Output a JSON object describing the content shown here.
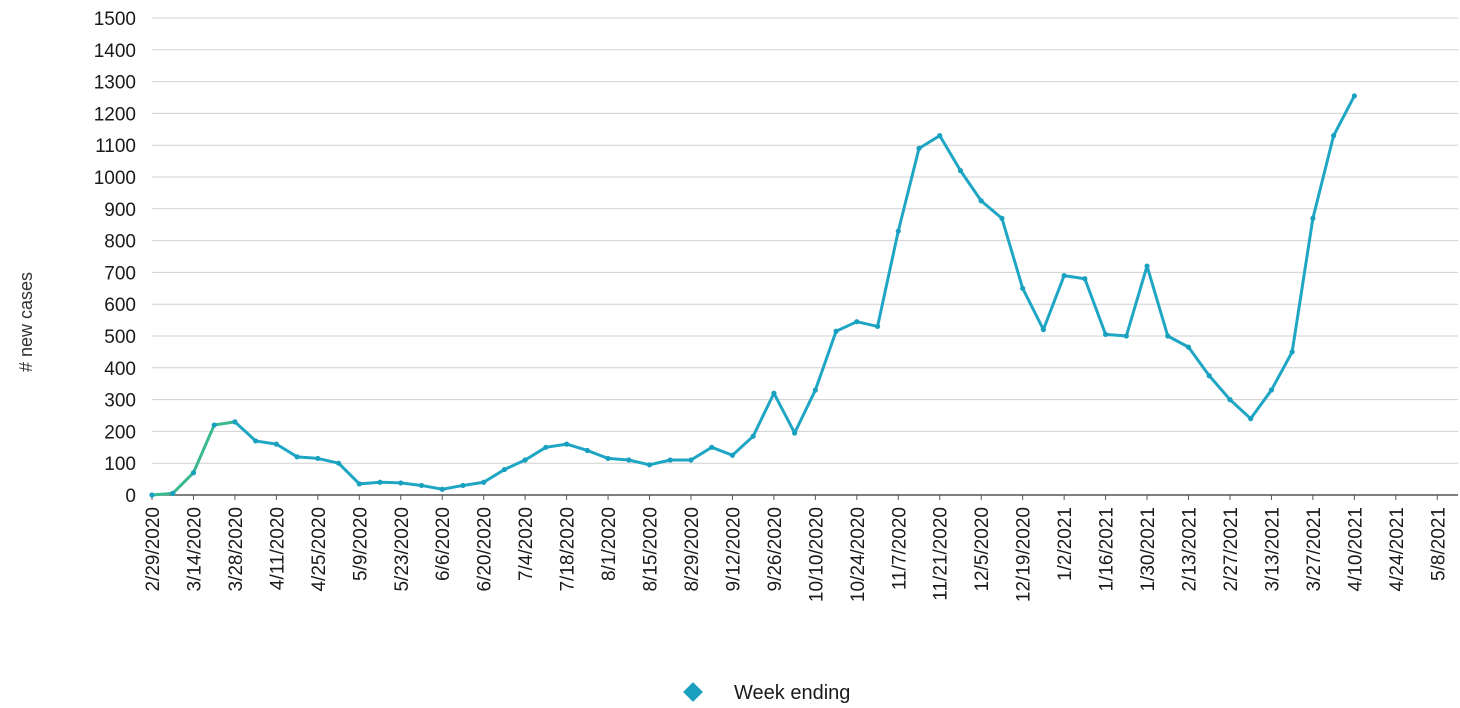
{
  "chart_data": {
    "type": "line",
    "ylabel": "# new cases",
    "xlabel": "",
    "ylim": [
      0,
      1500
    ],
    "yticks": [
      0,
      100,
      200,
      300,
      400,
      500,
      600,
      700,
      800,
      900,
      1000,
      1100,
      1200,
      1300,
      1400,
      1500
    ],
    "x_tick_labels": [
      "2/29/2020",
      "3/14/2020",
      "3/28/2020",
      "4/11/2020",
      "4/25/2020",
      "5/9/2020",
      "5/23/2020",
      "6/6/2020",
      "6/20/2020",
      "7/4/2020",
      "7/18/2020",
      "8/1/2020",
      "8/15/2020",
      "8/29/2020",
      "9/12/2020",
      "9/26/2020",
      "10/10/2020",
      "10/24/2020",
      "11/7/2020",
      "11/21/2020",
      "12/5/2020",
      "12/19/2020",
      "1/2/2021",
      "1/16/2021",
      "1/30/2021",
      "2/13/2021",
      "2/27/2021",
      "3/13/2021",
      "3/27/2021",
      "4/10/2021",
      "4/24/2021",
      "5/8/2021"
    ],
    "x": [
      "2/29/2020",
      "3/7/2020",
      "3/14/2020",
      "3/21/2020",
      "3/28/2020",
      "4/4/2020",
      "4/11/2020",
      "4/18/2020",
      "4/25/2020",
      "5/2/2020",
      "5/9/2020",
      "5/16/2020",
      "5/23/2020",
      "5/30/2020",
      "6/6/2020",
      "6/13/2020",
      "6/20/2020",
      "6/27/2020",
      "7/4/2020",
      "7/11/2020",
      "7/18/2020",
      "7/25/2020",
      "8/1/2020",
      "8/8/2020",
      "8/15/2020",
      "8/22/2020",
      "8/29/2020",
      "9/5/2020",
      "9/12/2020",
      "9/19/2020",
      "9/26/2020",
      "10/3/2020",
      "10/10/2020",
      "10/17/2020",
      "10/24/2020",
      "10/31/2020",
      "11/7/2020",
      "11/14/2020",
      "11/21/2020",
      "11/28/2020",
      "12/5/2020",
      "12/12/2020",
      "12/19/2020",
      "12/26/2020",
      "1/2/2021",
      "1/9/2021",
      "1/16/2021",
      "1/23/2021",
      "1/30/2021",
      "2/6/2021",
      "2/13/2021",
      "2/20/2021",
      "2/27/2021",
      "3/6/2021",
      "3/13/2021",
      "3/20/2021",
      "3/27/2021",
      "4/3/2021",
      "4/10/2021"
    ],
    "series": [
      {
        "name": "Week ending",
        "values": [
          0,
          5,
          70,
          220,
          230,
          170,
          160,
          120,
          115,
          100,
          35,
          40,
          38,
          30,
          18,
          30,
          40,
          80,
          110,
          150,
          160,
          140,
          115,
          110,
          95,
          110,
          110,
          150,
          125,
          185,
          320,
          195,
          330,
          515,
          545,
          530,
          830,
          1090,
          1130,
          1020,
          925,
          870,
          650,
          520,
          690,
          680,
          505,
          500,
          720,
          500,
          465,
          375,
          300,
          240,
          330,
          450,
          870,
          1130,
          1255
        ]
      }
    ],
    "grid": true,
    "legend_position": "bottom",
    "colors": {
      "line": "#1fa6c4",
      "early_segment": "#3ab88f",
      "marker": "#1aa0bf",
      "grid": "#d0d0d0",
      "axis": "#555555"
    }
  }
}
